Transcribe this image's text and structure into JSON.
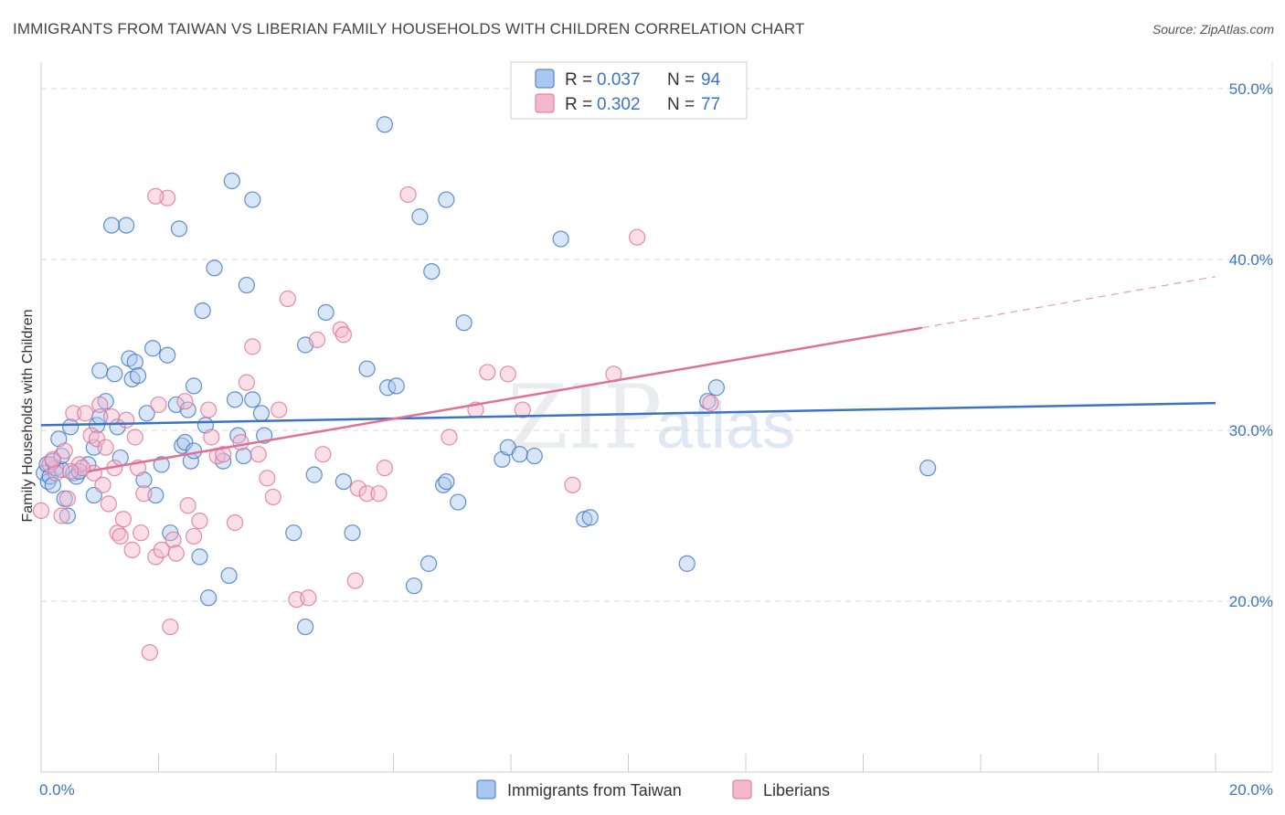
{
  "title": "IMMIGRANTS FROM TAIWAN VS LIBERIAN FAMILY HOUSEHOLDS WITH CHILDREN CORRELATION CHART",
  "source": "Source: ZipAtlas.com",
  "watermark": {
    "part1": "ZIP",
    "part2": "atlas"
  },
  "colors": {
    "blue": "#3b74c4",
    "blue_fill": "#aac8ef",
    "pink": "#e07096",
    "pink_fill": "#f3b8cb",
    "grid": "#d9d9d9"
  },
  "legend": {
    "rows": [
      {
        "r_label": "R = ",
        "r_value": "0.037",
        "n_label": "N = ",
        "n_value": "94"
      },
      {
        "r_label": "R = ",
        "r_value": "0.302",
        "n_label": "N = ",
        "n_value": "77"
      }
    ]
  },
  "chart_data": {
    "type": "scatter",
    "title": "IMMIGRANTS FROM TAIWAN VS LIBERIAN FAMILY HOUSEHOLDS WITH CHILDREN CORRELATION CHART",
    "xlabel": "",
    "ylabel": "Family Households with Children",
    "xlim": [
      0,
      20
    ],
    "ylim": [
      10,
      51
    ],
    "x_tick_labels": [
      "0.0%",
      "20.0%"
    ],
    "y_ticks": [
      20,
      30,
      40,
      50
    ],
    "y_tick_labels": [
      "20.0%",
      "30.0%",
      "40.0%",
      "50.0%"
    ],
    "grid": true,
    "legend_position": "top-center",
    "series": [
      {
        "name": "Immigrants from Taiwan",
        "R": 0.037,
        "N": 94,
        "trend": {
          "x": [
            0,
            20
          ],
          "y": [
            30.3,
            31.6
          ]
        },
        "points": [
          [
            0.05,
            27.5
          ],
          [
            0.1,
            28.0
          ],
          [
            0.12,
            27.0
          ],
          [
            0.15,
            27.3
          ],
          [
            0.2,
            26.8
          ],
          [
            0.25,
            27.8
          ],
          [
            0.3,
            29.5
          ],
          [
            0.35,
            27.7
          ],
          [
            0.4,
            26.0
          ],
          [
            0.45,
            25.0
          ],
          [
            0.55,
            27.5
          ],
          [
            0.6,
            27.3
          ],
          [
            0.9,
            26.2
          ],
          [
            0.2,
            28.2
          ],
          [
            0.5,
            30.2
          ],
          [
            0.95,
            30.3
          ],
          [
            0.9,
            29.0
          ],
          [
            1.0,
            30.8
          ],
          [
            1.1,
            31.7
          ],
          [
            1.0,
            33.5
          ],
          [
            1.25,
            33.3
          ],
          [
            1.3,
            30.2
          ],
          [
            1.35,
            28.4
          ],
          [
            1.5,
            34.2
          ],
          [
            1.6,
            34.0
          ],
          [
            1.55,
            33.0
          ],
          [
            1.65,
            33.2
          ],
          [
            1.8,
            31.0
          ],
          [
            1.9,
            34.8
          ],
          [
            1.75,
            27.1
          ],
          [
            1.95,
            26.2
          ],
          [
            2.05,
            28.0
          ],
          [
            2.15,
            34.4
          ],
          [
            2.2,
            24.0
          ],
          [
            2.3,
            31.5
          ],
          [
            2.4,
            29.1
          ],
          [
            2.45,
            29.3
          ],
          [
            2.5,
            31.2
          ],
          [
            2.55,
            28.2
          ],
          [
            2.6,
            32.6
          ],
          [
            2.7,
            22.6
          ],
          [
            2.75,
            37.0
          ],
          [
            2.8,
            30.3
          ],
          [
            2.85,
            20.2
          ],
          [
            2.95,
            39.5
          ],
          [
            3.1,
            28.2
          ],
          [
            3.2,
            21.5
          ],
          [
            3.3,
            31.8
          ],
          [
            3.35,
            29.7
          ],
          [
            3.45,
            28.5
          ],
          [
            3.5,
            38.5
          ],
          [
            3.6,
            31.8
          ],
          [
            3.75,
            31.0
          ],
          [
            3.8,
            29.7
          ],
          [
            4.3,
            24.0
          ],
          [
            4.5,
            18.5
          ],
          [
            4.5,
            35.0
          ],
          [
            4.65,
            27.4
          ],
          [
            4.85,
            36.9
          ],
          [
            5.15,
            27.0
          ],
          [
            5.3,
            24.0
          ],
          [
            5.55,
            33.6
          ],
          [
            5.9,
            32.5
          ],
          [
            6.05,
            32.6
          ],
          [
            6.35,
            20.9
          ],
          [
            6.6,
            22.2
          ],
          [
            6.85,
            26.8
          ],
          [
            6.9,
            27.0
          ],
          [
            7.1,
            25.8
          ],
          [
            7.85,
            28.3
          ],
          [
            7.95,
            29.0
          ],
          [
            8.15,
            28.6
          ],
          [
            8.4,
            28.5
          ],
          [
            9.25,
            24.8
          ],
          [
            9.35,
            24.9
          ],
          [
            11.0,
            22.2
          ],
          [
            11.35,
            31.7
          ],
          [
            11.5,
            32.5
          ],
          [
            15.1,
            27.8
          ],
          [
            1.45,
            42.0
          ],
          [
            1.2,
            42.0
          ],
          [
            2.35,
            41.8
          ],
          [
            3.25,
            44.6
          ],
          [
            3.6,
            43.5
          ],
          [
            5.85,
            47.9
          ],
          [
            6.45,
            42.5
          ],
          [
            6.65,
            39.3
          ],
          [
            6.9,
            43.5
          ],
          [
            7.2,
            36.3
          ],
          [
            8.85,
            41.2
          ],
          [
            2.6,
            28.8
          ],
          [
            0.8,
            28.0
          ],
          [
            0.35,
            28.5
          ],
          [
            0.65,
            27.6
          ]
        ]
      },
      {
        "name": "Liberians",
        "R": 0.302,
        "N": 77,
        "trend": {
          "x": [
            0.8,
            15.0
          ],
          "y": [
            27.6,
            36.0
          ]
        },
        "trend_dashed": {
          "x": [
            15.0,
            20.0
          ],
          "y": [
            36.0,
            39.0
          ]
        },
        "points": [
          [
            0.0,
            25.3
          ],
          [
            0.15,
            28.0
          ],
          [
            0.25,
            27.5
          ],
          [
            0.35,
            25.0
          ],
          [
            0.45,
            26.0
          ],
          [
            0.55,
            31.0
          ],
          [
            0.65,
            28.0
          ],
          [
            0.75,
            31.0
          ],
          [
            0.85,
            29.7
          ],
          [
            0.9,
            27.5
          ],
          [
            0.95,
            29.5
          ],
          [
            1.05,
            26.8
          ],
          [
            1.15,
            25.7
          ],
          [
            1.2,
            30.8
          ],
          [
            1.25,
            27.8
          ],
          [
            1.3,
            24.0
          ],
          [
            1.35,
            23.8
          ],
          [
            1.4,
            24.8
          ],
          [
            1.45,
            30.6
          ],
          [
            1.55,
            23.0
          ],
          [
            1.6,
            29.6
          ],
          [
            1.65,
            27.8
          ],
          [
            1.7,
            24.0
          ],
          [
            1.75,
            26.3
          ],
          [
            1.85,
            17.0
          ],
          [
            1.95,
            22.6
          ],
          [
            2.05,
            23.0
          ],
          [
            2.2,
            18.5
          ],
          [
            2.25,
            23.6
          ],
          [
            2.3,
            22.8
          ],
          [
            2.45,
            31.7
          ],
          [
            2.5,
            25.6
          ],
          [
            2.7,
            24.7
          ],
          [
            2.85,
            31.2
          ],
          [
            2.9,
            29.6
          ],
          [
            3.0,
            28.5
          ],
          [
            3.1,
            28.6
          ],
          [
            3.3,
            24.6
          ],
          [
            3.5,
            32.8
          ],
          [
            3.6,
            34.9
          ],
          [
            3.7,
            28.6
          ],
          [
            3.85,
            27.2
          ],
          [
            3.95,
            26.1
          ],
          [
            4.05,
            31.2
          ],
          [
            4.2,
            37.7
          ],
          [
            4.35,
            20.1
          ],
          [
            4.55,
            20.2
          ],
          [
            4.7,
            35.3
          ],
          [
            4.8,
            28.6
          ],
          [
            5.1,
            35.9
          ],
          [
            5.15,
            35.6
          ],
          [
            5.35,
            21.2
          ],
          [
            5.4,
            26.6
          ],
          [
            5.55,
            26.3
          ],
          [
            5.75,
            26.3
          ],
          [
            5.85,
            27.8
          ],
          [
            6.25,
            43.8
          ],
          [
            6.95,
            29.6
          ],
          [
            7.4,
            31.2
          ],
          [
            7.6,
            33.4
          ],
          [
            7.95,
            33.3
          ],
          [
            8.2,
            31.2
          ],
          [
            9.05,
            26.8
          ],
          [
            9.75,
            33.3
          ],
          [
            10.15,
            41.3
          ],
          [
            11.4,
            31.6
          ],
          [
            2.15,
            43.6
          ],
          [
            1.95,
            43.7
          ],
          [
            0.2,
            28.3
          ],
          [
            0.4,
            28.8
          ],
          [
            0.7,
            27.8
          ],
          [
            1.1,
            29.0
          ],
          [
            2.6,
            23.8
          ],
          [
            0.5,
            27.6
          ],
          [
            1.0,
            31.5
          ],
          [
            2.0,
            31.5
          ],
          [
            3.4,
            29.3
          ]
        ]
      }
    ]
  }
}
